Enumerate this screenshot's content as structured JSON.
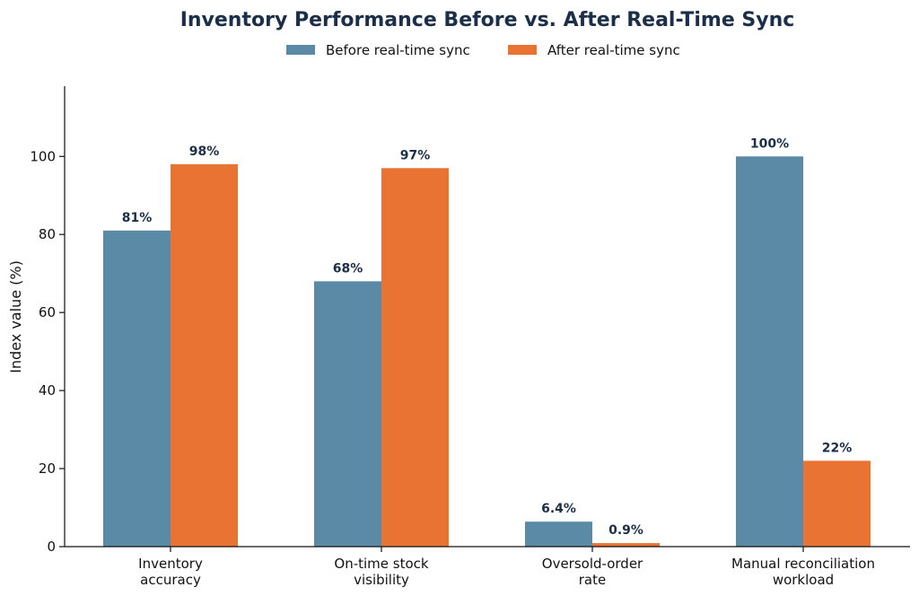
{
  "colors": {
    "before": "#5b8aa6",
    "after": "#e87333",
    "title": "#1b2f4a",
    "data_label": "#1b2f4a"
  },
  "chart_data": {
    "type": "bar",
    "title": "Inventory Performance Before vs. After Real-Time Sync",
    "xlabel": "",
    "ylabel": "Index value (%)",
    "ylim": [
      0,
      118
    ],
    "yticks": [
      0,
      20,
      40,
      60,
      80,
      100
    ],
    "grid": false,
    "legend_position": "top-center",
    "categories": [
      [
        "Inventory",
        "accuracy"
      ],
      [
        "On-time stock",
        "visibility"
      ],
      [
        "Oversold-order",
        "rate"
      ],
      [
        "Manual reconciliation",
        "workload"
      ]
    ],
    "series": [
      {
        "name": "Before real-time sync",
        "color": "#5b8aa6",
        "values": [
          81,
          68,
          6.4,
          100
        ],
        "labels": [
          "81%",
          "68%",
          "6.4%",
          "100%"
        ]
      },
      {
        "name": "After real-time sync",
        "color": "#e87333",
        "values": [
          98,
          97,
          0.9,
          22
        ],
        "labels": [
          "98%",
          "97%",
          "0.9%",
          "22%"
        ]
      }
    ]
  }
}
